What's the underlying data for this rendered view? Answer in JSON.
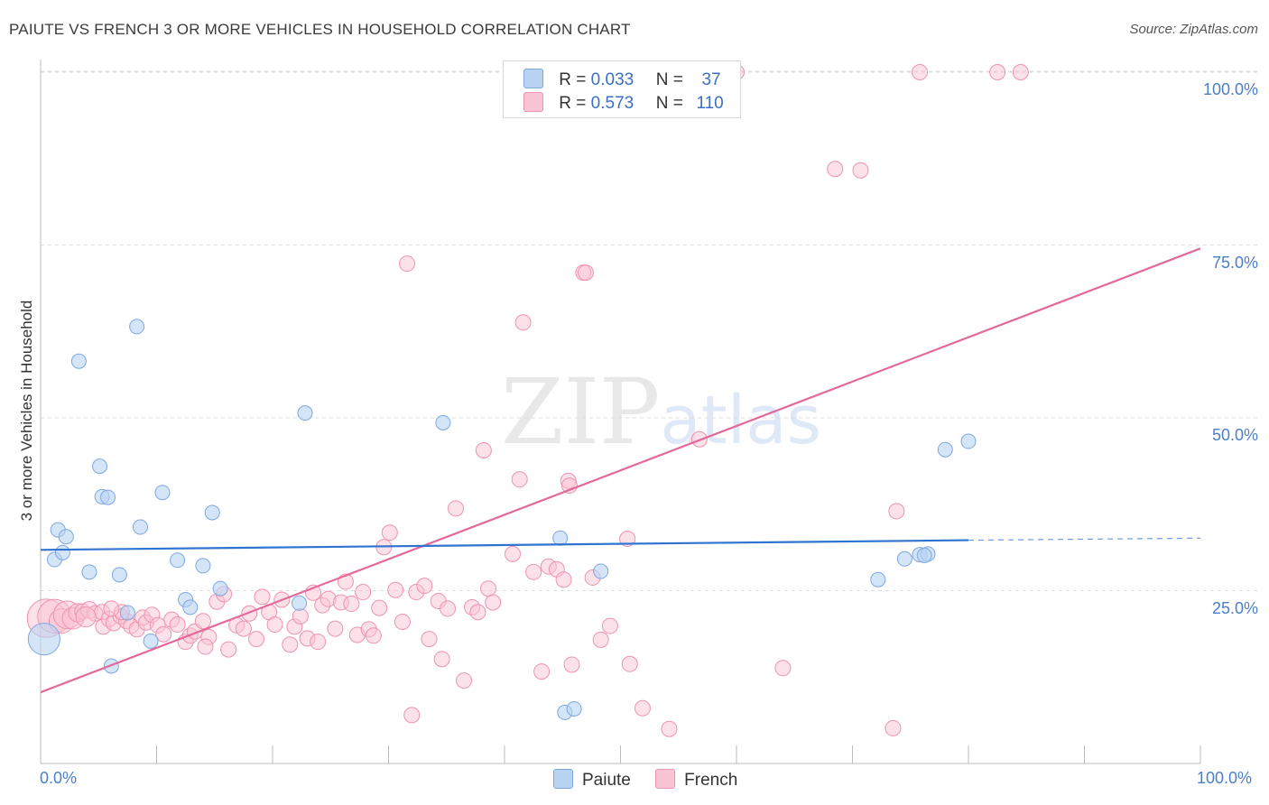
{
  "title": "PAIUTE VS FRENCH 3 OR MORE VEHICLES IN HOUSEHOLD CORRELATION CHART",
  "source": "Source: ZipAtlas.com",
  "watermark": {
    "zip": "ZIP",
    "atlas": "atlas"
  },
  "colors": {
    "paiute_fill": "#b9d3f3",
    "paiute_stroke": "#7da7e0",
    "paiute_line": "#2f74d0",
    "french_fill": "#f9c4d4",
    "french_stroke": "#ee93b1",
    "french_line": "#e2699a",
    "tick_text": "#4a7fc8",
    "grid": "#dddddd"
  },
  "legend": {
    "paiute": {
      "r_label": "R =",
      "r_value": "0.033",
      "n_label": "N =",
      "n_value": "37"
    },
    "french": {
      "r_label": "R =",
      "r_value": "0.573",
      "n_label": "N =",
      "n_value": "110"
    }
  },
  "bottom_legend": {
    "paiute": "Paiute",
    "french": "French"
  },
  "chart_data": {
    "type": "scatter",
    "title": "PAIUTE VS FRENCH 3 OR MORE VEHICLES IN HOUSEHOLD CORRELATION CHART",
    "xlabel": "",
    "ylabel": "3 or more Vehicles in Household",
    "xlim": [
      0,
      100
    ],
    "ylim": [
      0,
      104
    ],
    "x_tick_labels": [
      "0.0%",
      "100.0%"
    ],
    "y_tick_labels": [
      "25.0%",
      "50.0%",
      "75.0%",
      "100.0%"
    ],
    "y_ticks": [
      25,
      50,
      75,
      100
    ],
    "series": [
      {
        "name": "Paiute",
        "trend": {
          "x0": 0,
          "y0": 30.9,
          "x1": 80,
          "y1": 32.3,
          "dashed_to": 100,
          "dashed_y": 32.6
        },
        "points": [
          [
            0.3,
            18.0,
            2.2
          ],
          [
            1.2,
            29.5,
            1
          ],
          [
            1.5,
            33.8,
            1
          ],
          [
            1.9,
            30.5,
            1
          ],
          [
            2.2,
            32.8,
            1
          ],
          [
            3.3,
            58.2,
            1
          ],
          [
            4.2,
            27.7,
            1
          ],
          [
            5.1,
            43.0,
            1
          ],
          [
            5.3,
            38.6,
            1
          ],
          [
            5.8,
            38.5,
            1
          ],
          [
            6.1,
            14.1,
            1
          ],
          [
            6.8,
            27.3,
            1
          ],
          [
            7.5,
            21.8,
            1
          ],
          [
            8.3,
            63.2,
            1
          ],
          [
            8.6,
            34.2,
            1
          ],
          [
            9.5,
            17.7,
            1
          ],
          [
            10.5,
            39.2,
            1
          ],
          [
            11.8,
            29.4,
            1
          ],
          [
            12.5,
            23.7,
            1
          ],
          [
            12.9,
            22.6,
            1
          ],
          [
            14.0,
            28.6,
            1
          ],
          [
            14.8,
            36.3,
            1
          ],
          [
            15.5,
            25.3,
            1
          ],
          [
            22.3,
            23.2,
            1
          ],
          [
            22.8,
            50.7,
            1
          ],
          [
            34.7,
            49.3,
            1
          ],
          [
            44.8,
            32.6,
            1
          ],
          [
            45.2,
            7.4,
            1
          ],
          [
            46.0,
            7.9,
            1
          ],
          [
            48.3,
            27.8,
            1
          ],
          [
            72.2,
            26.6,
            1
          ],
          [
            74.5,
            29.6,
            1
          ],
          [
            75.8,
            30.2,
            1
          ],
          [
            76.5,
            30.3,
            1
          ],
          [
            76.2,
            30.1,
            1
          ],
          [
            78.0,
            45.4,
            1
          ],
          [
            80.0,
            46.6,
            1
          ]
        ]
      },
      {
        "name": "French",
        "trend": {
          "x0": 0,
          "y0": 10.3,
          "x1": 100,
          "y1": 74.5
        },
        "points": [
          [
            0.5,
            21.0,
            2.5
          ],
          [
            1.2,
            21.3,
            2.2
          ],
          [
            1.8,
            20.6,
            1.6
          ],
          [
            2.3,
            21.5,
            1.8
          ],
          [
            2.8,
            21.0,
            1.4
          ],
          [
            3.2,
            21.8,
            1.2
          ],
          [
            3.6,
            22.0,
            1
          ],
          [
            4.2,
            22.2,
            1.1
          ],
          [
            4.7,
            21.7,
            1
          ],
          [
            5.3,
            21.9,
            1
          ],
          [
            5.4,
            19.8,
            1
          ],
          [
            5.9,
            20.9,
            1
          ],
          [
            6.3,
            20.3,
            1
          ],
          [
            6.9,
            21.3,
            1
          ],
          [
            7.4,
            20.6,
            1
          ],
          [
            7.8,
            19.9,
            1
          ],
          [
            8.3,
            19.4,
            1
          ],
          [
            8.8,
            21.1,
            1
          ],
          [
            9.1,
            20.4,
            1
          ],
          [
            9.6,
            21.5,
            1
          ],
          [
            10.1,
            20.0,
            1
          ],
          [
            10.6,
            18.7,
            1
          ],
          [
            11.3,
            20.8,
            1
          ],
          [
            11.8,
            20.1,
            1
          ],
          [
            12.5,
            17.6,
            1
          ],
          [
            12.9,
            18.5,
            1
          ],
          [
            13.3,
            19.1,
            1
          ],
          [
            14.0,
            20.6,
            1
          ],
          [
            14.5,
            18.3,
            1
          ],
          [
            15.2,
            23.4,
            1
          ],
          [
            15.8,
            24.5,
            1
          ],
          [
            16.2,
            16.5,
            1
          ],
          [
            16.9,
            20.0,
            1
          ],
          [
            17.5,
            19.5,
            1
          ],
          [
            18.0,
            21.7,
            1
          ],
          [
            18.6,
            18.0,
            1
          ],
          [
            19.1,
            24.1,
            1
          ],
          [
            19.7,
            21.9,
            1
          ],
          [
            20.2,
            20.1,
            1
          ],
          [
            20.8,
            23.7,
            1
          ],
          [
            21.5,
            17.2,
            1
          ],
          [
            21.9,
            19.8,
            1
          ],
          [
            22.4,
            21.3,
            1
          ],
          [
            23.0,
            18.1,
            1
          ],
          [
            23.5,
            24.7,
            1
          ],
          [
            23.9,
            17.6,
            1
          ],
          [
            24.3,
            22.9,
            1
          ],
          [
            24.8,
            23.8,
            1
          ],
          [
            25.4,
            19.5,
            1
          ],
          [
            25.9,
            23.3,
            1
          ],
          [
            26.3,
            26.3,
            1
          ],
          [
            26.8,
            23.1,
            1
          ],
          [
            27.3,
            18.6,
            1
          ],
          [
            27.8,
            24.8,
            1
          ],
          [
            28.3,
            19.4,
            1
          ],
          [
            28.7,
            18.5,
            1
          ],
          [
            29.2,
            22.5,
            1
          ],
          [
            29.6,
            31.3,
            1
          ],
          [
            30.1,
            33.4,
            1
          ],
          [
            30.6,
            25.1,
            1
          ],
          [
            31.2,
            20.5,
            1
          ],
          [
            31.6,
            72.3,
            1
          ],
          [
            32.4,
            24.8,
            1
          ],
          [
            33.1,
            25.7,
            1
          ],
          [
            33.5,
            18.0,
            1
          ],
          [
            34.3,
            23.5,
            1
          ],
          [
            34.6,
            15.1,
            1
          ],
          [
            35.1,
            22.4,
            1
          ],
          [
            35.8,
            36.9,
            1
          ],
          [
            36.5,
            12.0,
            1
          ],
          [
            37.2,
            22.6,
            1
          ],
          [
            37.7,
            21.9,
            1
          ],
          [
            38.2,
            45.3,
            1
          ],
          [
            38.6,
            25.3,
            1
          ],
          [
            39.0,
            23.3,
            1
          ],
          [
            40.7,
            30.3,
            1
          ],
          [
            41.3,
            41.1,
            1
          ],
          [
            41.6,
            63.8,
            1
          ],
          [
            42.5,
            27.7,
            1
          ],
          [
            43.2,
            13.3,
            1
          ],
          [
            43.8,
            28.5,
            1
          ],
          [
            44.5,
            28.1,
            1
          ],
          [
            45.1,
            26.6,
            1
          ],
          [
            45.5,
            40.9,
            1
          ],
          [
            45.6,
            40.2,
            1
          ],
          [
            45.8,
            14.3,
            1
          ],
          [
            46.8,
            71.0,
            1
          ],
          [
            47.0,
            71.0,
            1
          ],
          [
            47.6,
            26.9,
            1
          ],
          [
            48.3,
            17.9,
            1
          ],
          [
            49.1,
            19.9,
            1
          ],
          [
            50.6,
            32.5,
            1
          ],
          [
            50.8,
            14.4,
            1
          ],
          [
            51.9,
            8.0,
            1
          ],
          [
            54.2,
            5.0,
            1
          ],
          [
            56.8,
            46.9,
            1
          ],
          [
            60.0,
            100.0,
            1
          ],
          [
            64.0,
            13.8,
            1
          ],
          [
            68.5,
            86.0,
            1
          ],
          [
            70.7,
            85.8,
            1
          ],
          [
            73.5,
            5.1,
            1
          ],
          [
            73.8,
            36.5,
            1
          ],
          [
            75.8,
            100.0,
            1
          ],
          [
            82.5,
            100.0,
            1
          ],
          [
            84.5,
            100.0,
            1
          ],
          [
            32.0,
            7.0,
            1
          ],
          [
            14.2,
            16.9,
            1
          ],
          [
            7.0,
            21.9,
            1
          ],
          [
            3.9,
            21.2,
            1.3
          ],
          [
            6.1,
            22.4,
            1
          ]
        ]
      }
    ]
  }
}
